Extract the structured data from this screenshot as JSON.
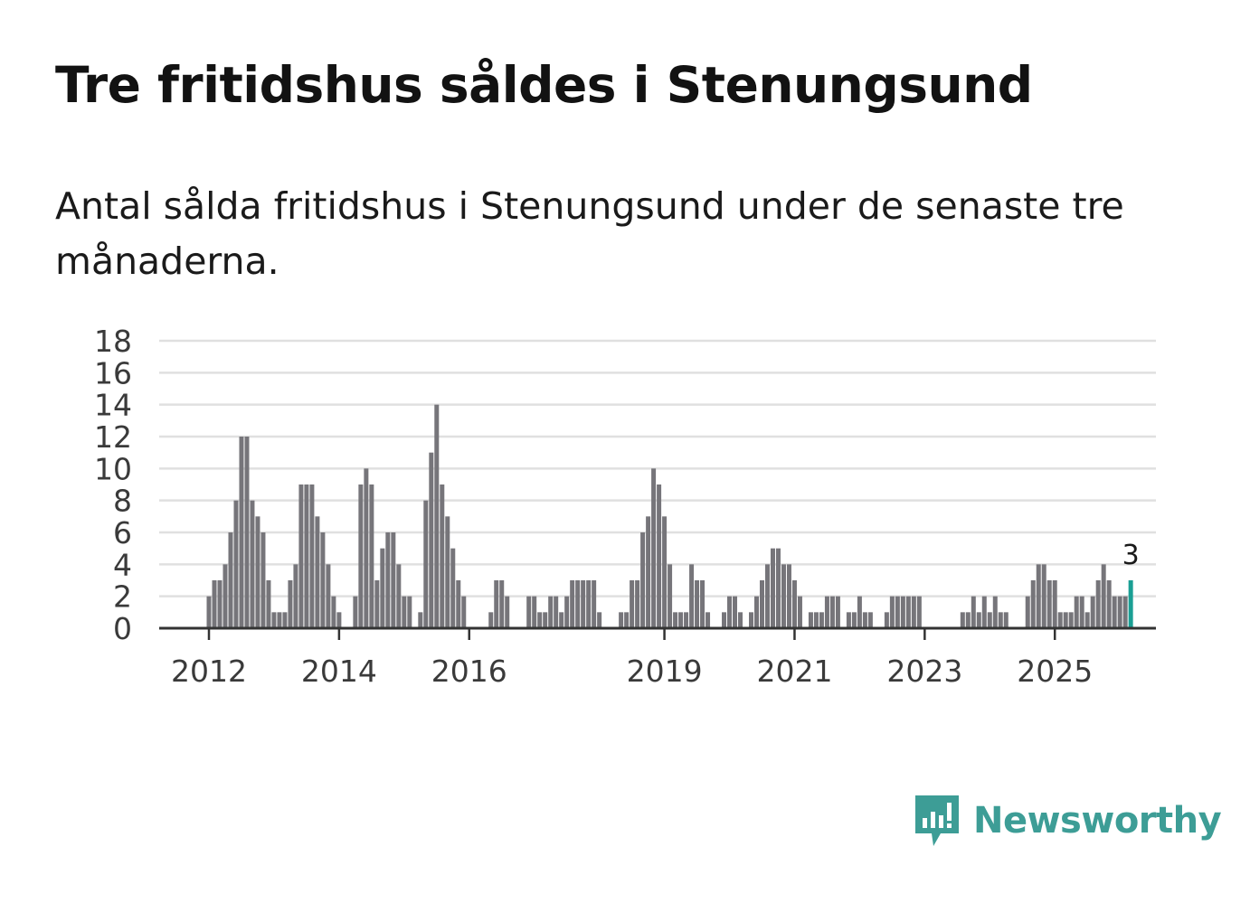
{
  "title": "Tre fritidshus såldes i Stenungsund",
  "subtitle": "Antal sålda fritidshus i Stenungsund under de senaste tre månaderna.",
  "brand": {
    "name": "Newsworthy",
    "icon": "newsworthy-logo-icon",
    "color": "#3d9d96"
  },
  "colors": {
    "bar": "#76757a",
    "highlight": "#1a9f94",
    "grid": "#e0e0e0",
    "axis": "#333333"
  },
  "chart_data": {
    "type": "bar",
    "x_unit": "month",
    "x_start": "2012-01",
    "values": [
      2,
      3,
      3,
      4,
      6,
      8,
      12,
      12,
      8,
      7,
      6,
      3,
      1,
      1,
      1,
      3,
      4,
      9,
      9,
      9,
      7,
      6,
      4,
      2,
      1,
      0,
      0,
      2,
      9,
      10,
      9,
      3,
      5,
      6,
      6,
      4,
      2,
      2,
      0,
      1,
      8,
      11,
      14,
      9,
      7,
      5,
      3,
      2,
      0,
      0,
      0,
      0,
      1,
      3,
      3,
      2,
      0,
      0,
      0,
      2,
      2,
      1,
      1,
      2,
      2,
      1,
      2,
      3,
      3,
      3,
      3,
      3,
      1,
      0,
      0,
      0,
      1,
      1,
      3,
      3,
      6,
      7,
      10,
      9,
      7,
      4,
      1,
      1,
      1,
      4,
      3,
      3,
      1,
      0,
      0,
      1,
      2,
      2,
      1,
      0,
      1,
      2,
      3,
      4,
      5,
      5,
      4,
      4,
      3,
      2,
      0,
      1,
      1,
      1,
      2,
      2,
      2,
      0,
      1,
      1,
      2,
      1,
      1,
      0,
      0,
      1,
      2,
      2,
      2,
      2,
      2,
      2,
      0,
      0,
      0,
      0,
      0,
      0,
      0,
      1,
      1,
      2,
      1,
      2,
      1,
      2,
      1,
      1,
      0,
      0,
      0,
      2,
      3,
      4,
      4,
      3,
      3,
      1,
      1,
      1,
      2,
      2,
      1,
      2,
      3,
      4,
      3,
      2,
      2,
      2,
      3
    ],
    "highlight_last": true,
    "annotation": "3",
    "x_ticks": [
      "2012",
      "2014",
      "2016",
      "2019",
      "2021",
      "2023",
      "2025"
    ],
    "y_ticks": [
      0,
      2,
      4,
      6,
      8,
      10,
      12,
      14,
      16,
      18
    ],
    "ylim": [
      0,
      18
    ],
    "grid": true,
    "legend": "none"
  }
}
